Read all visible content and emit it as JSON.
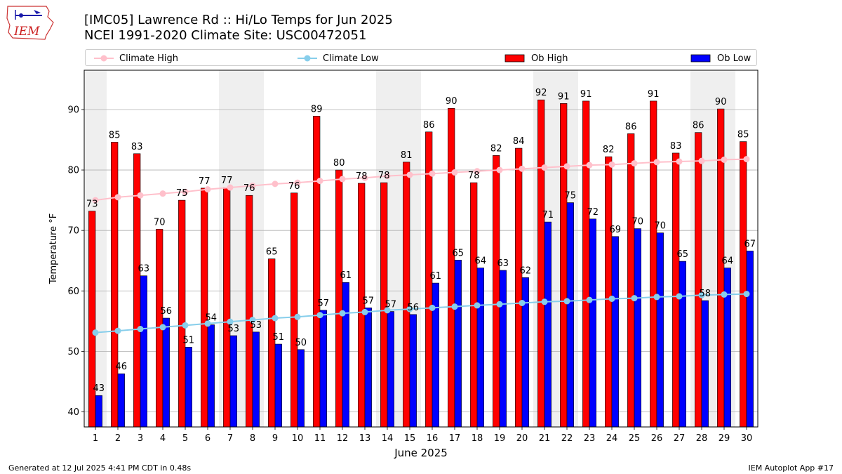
{
  "header": {
    "logo_text": "IEM",
    "title_line1": "[IMC05] Lawrence Rd  :: Hi/Lo Temps for Jun 2025",
    "title_line2": "NCEI 1991-2020 Climate Site: USC00472051"
  },
  "legend": [
    {
      "label": "Climate High",
      "kind": "line",
      "color": "#ffc0cb"
    },
    {
      "label": "Climate Low",
      "kind": "line",
      "color": "#87ceeb"
    },
    {
      "label": "Ob High",
      "kind": "bar",
      "color": "#ff0000"
    },
    {
      "label": "Ob Low",
      "kind": "bar",
      "color": "#0000ff"
    }
  ],
  "footer": {
    "left": "Generated at 12 Jul 2025 4:41 PM CDT in 0.48s",
    "right": "IEM Autoplot App #17"
  },
  "chart_data": {
    "type": "bar",
    "xlabel": "June 2025",
    "ylabel": "Temperature °F",
    "ylim": [
      37.5,
      96.5
    ],
    "yticks": [
      40,
      50,
      60,
      70,
      80,
      90
    ],
    "grid": true,
    "legend_position": "top",
    "weekend_shading": [
      [
        1
      ],
      [
        7,
        8
      ],
      [
        14,
        15
      ],
      [
        21,
        22
      ],
      [
        28,
        29
      ]
    ],
    "categories": [
      1,
      2,
      3,
      4,
      5,
      6,
      7,
      8,
      9,
      10,
      11,
      12,
      13,
      14,
      15,
      16,
      17,
      18,
      19,
      20,
      21,
      22,
      23,
      24,
      25,
      26,
      27,
      28,
      29,
      30
    ],
    "series": [
      {
        "name": "Ob High",
        "kind": "bar",
        "color": "#ff0000",
        "values": [
          73,
          85,
          83,
          70,
          75,
          77,
          77,
          76,
          65,
          76,
          89,
          80,
          78,
          78,
          81,
          86,
          90,
          78,
          82,
          84,
          92,
          91,
          91,
          82,
          86,
          91,
          83,
          86,
          90,
          85
        ],
        "plot_values": [
          73.2,
          84.6,
          82.7,
          70.2,
          75.0,
          77.0,
          77.1,
          75.8,
          65.3,
          76.2,
          88.9,
          80.0,
          77.8,
          77.9,
          81.3,
          86.3,
          90.2,
          77.9,
          82.4,
          83.6,
          91.6,
          91.0,
          91.4,
          82.2,
          86.0,
          91.4,
          82.8,
          86.2,
          90.1,
          84.7
        ]
      },
      {
        "name": "Ob Low",
        "kind": "bar",
        "color": "#0000ff",
        "values": [
          43,
          46,
          63,
          56,
          51,
          54,
          53,
          53,
          51,
          50,
          57,
          61,
          57,
          57,
          56,
          61,
          65,
          64,
          63,
          62,
          71,
          75,
          72,
          69,
          70,
          70,
          65,
          58,
          64,
          67
        ],
        "plot_values": [
          42.7,
          46.3,
          62.5,
          55.5,
          50.7,
          54.4,
          52.6,
          53.2,
          51.2,
          50.3,
          56.8,
          61.4,
          57.2,
          56.6,
          56.1,
          61.3,
          65.1,
          63.8,
          63.4,
          62.2,
          71.4,
          74.6,
          71.9,
          69.0,
          70.3,
          69.6,
          64.9,
          58.4,
          63.8,
          66.6
        ]
      },
      {
        "name": "Climate High",
        "kind": "line",
        "color": "#ffc0cb",
        "values": [
          75.0,
          75.5,
          75.8,
          76.1,
          76.4,
          76.8,
          77.1,
          77.4,
          77.7,
          77.9,
          78.2,
          78.5,
          78.7,
          79.0,
          79.2,
          79.4,
          79.6,
          79.8,
          80.0,
          80.2,
          80.4,
          80.6,
          80.8,
          80.9,
          81.1,
          81.3,
          81.4,
          81.5,
          81.7,
          81.8
        ]
      },
      {
        "name": "Climate Low",
        "kind": "line",
        "color": "#87ceeb",
        "values": [
          53.1,
          53.4,
          53.7,
          54.0,
          54.3,
          54.6,
          54.9,
          55.2,
          55.5,
          55.7,
          56.0,
          56.3,
          56.5,
          56.8,
          57.0,
          57.2,
          57.4,
          57.6,
          57.8,
          58.0,
          58.2,
          58.3,
          58.5,
          58.7,
          58.8,
          59.0,
          59.1,
          59.3,
          59.4,
          59.5
        ]
      }
    ]
  }
}
